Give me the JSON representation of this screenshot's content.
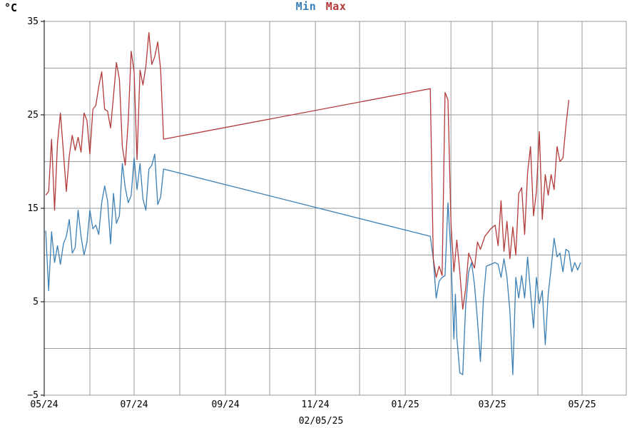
{
  "unit_label": "°C",
  "footer_date": "02/05/25",
  "legend": {
    "min_label": "Min",
    "max_label": "Max"
  },
  "colors": {
    "min": "#3b7fb4",
    "max": "#b33a3a",
    "grid": "#9a9a9a",
    "axis": "#000000"
  },
  "chart_data": {
    "type": "line",
    "title": "",
    "xlabel": "",
    "ylabel": "°C",
    "xlim": [
      "2024-05-01",
      "2025-05-31"
    ],
    "ylim": [
      -5,
      35
    ],
    "y_ticks": [
      35,
      25,
      15,
      5,
      -5
    ],
    "x_ticks": [
      {
        "date": "2024-05-01",
        "label": "05/24"
      },
      {
        "date": "2024-07-01",
        "label": "07/24"
      },
      {
        "date": "2024-09-01",
        "label": "09/24"
      },
      {
        "date": "2024-11-01",
        "label": "11/24"
      },
      {
        "date": "2025-01-01",
        "label": "01/25"
      },
      {
        "date": "2025-03-01",
        "label": "03/25"
      },
      {
        "date": "2025-05-01",
        "label": "05/25"
      }
    ],
    "grid": true,
    "legend_position": "top-center",
    "series": [
      {
        "name": "Min",
        "points": [
          [
            "2024-05-02",
            12.6
          ],
          [
            "2024-05-04",
            6.2
          ],
          [
            "2024-05-06",
            12.5
          ],
          [
            "2024-05-08",
            9.2
          ],
          [
            "2024-05-10",
            11.0
          ],
          [
            "2024-05-12",
            9.0
          ],
          [
            "2024-05-14",
            11.2
          ],
          [
            "2024-05-16",
            12.0
          ],
          [
            "2024-05-18",
            13.8
          ],
          [
            "2024-05-20",
            10.2
          ],
          [
            "2024-05-22",
            10.8
          ],
          [
            "2024-05-24",
            14.8
          ],
          [
            "2024-05-26",
            12.0
          ],
          [
            "2024-05-28",
            10.0
          ],
          [
            "2024-05-30",
            11.4
          ],
          [
            "2024-06-01",
            14.8
          ],
          [
            "2024-06-03",
            12.8
          ],
          [
            "2024-06-05",
            13.2
          ],
          [
            "2024-06-07",
            12.2
          ],
          [
            "2024-06-09",
            15.6
          ],
          [
            "2024-06-11",
            17.4
          ],
          [
            "2024-06-13",
            15.8
          ],
          [
            "2024-06-15",
            11.2
          ],
          [
            "2024-06-17",
            16.6
          ],
          [
            "2024-06-19",
            13.4
          ],
          [
            "2024-06-21",
            14.2
          ],
          [
            "2024-06-23",
            19.8
          ],
          [
            "2024-06-25",
            17.2
          ],
          [
            "2024-06-27",
            15.6
          ],
          [
            "2024-06-29",
            16.4
          ],
          [
            "2024-07-01",
            20.4
          ],
          [
            "2024-07-03",
            17.0
          ],
          [
            "2024-07-05",
            19.8
          ],
          [
            "2024-07-07",
            16.0
          ],
          [
            "2024-07-09",
            14.8
          ],
          [
            "2024-07-11",
            19.2
          ],
          [
            "2024-07-13",
            19.6
          ],
          [
            "2024-07-15",
            20.8
          ],
          [
            "2024-07-17",
            15.4
          ],
          [
            "2024-07-19",
            16.2
          ],
          [
            "2024-07-21",
            19.2
          ],
          [
            "2025-01-18",
            12.0
          ],
          [
            "2025-01-20",
            9.6
          ],
          [
            "2025-01-22",
            5.4
          ],
          [
            "2025-01-24",
            7.2
          ],
          [
            "2025-01-26",
            7.6
          ],
          [
            "2025-01-28",
            7.8
          ],
          [
            "2025-01-30",
            15.6
          ],
          [
            "2025-02-01",
            10.0
          ],
          [
            "2025-02-03",
            1.0
          ],
          [
            "2025-02-04",
            5.8
          ],
          [
            "2025-02-05",
            1.2
          ],
          [
            "2025-02-07",
            -2.6
          ],
          [
            "2025-02-09",
            -2.8
          ],
          [
            "2025-02-11",
            4.6
          ],
          [
            "2025-02-13",
            8.2
          ],
          [
            "2025-02-15",
            9.2
          ],
          [
            "2025-02-17",
            6.8
          ],
          [
            "2025-02-19",
            3.0
          ],
          [
            "2025-02-21",
            -1.4
          ],
          [
            "2025-02-23",
            5.2
          ],
          [
            "2025-02-25",
            8.8
          ],
          [
            "2025-02-28",
            9.0
          ],
          [
            "2025-03-03",
            9.2
          ],
          [
            "2025-03-05",
            9.0
          ],
          [
            "2025-03-07",
            7.6
          ],
          [
            "2025-03-09",
            9.6
          ],
          [
            "2025-03-11",
            7.6
          ],
          [
            "2025-03-13",
            4.0
          ],
          [
            "2025-03-15",
            -2.8
          ],
          [
            "2025-03-17",
            7.6
          ],
          [
            "2025-03-19",
            5.4
          ],
          [
            "2025-03-21",
            7.8
          ],
          [
            "2025-03-23",
            5.4
          ],
          [
            "2025-03-25",
            9.8
          ],
          [
            "2025-03-27",
            6.0
          ],
          [
            "2025-03-29",
            2.2
          ],
          [
            "2025-03-31",
            7.6
          ],
          [
            "2025-04-02",
            4.8
          ],
          [
            "2025-04-04",
            6.2
          ],
          [
            "2025-04-06",
            0.4
          ],
          [
            "2025-04-08",
            5.8
          ],
          [
            "2025-04-10",
            8.6
          ],
          [
            "2025-04-12",
            11.8
          ],
          [
            "2025-04-14",
            9.8
          ],
          [
            "2025-04-16",
            10.2
          ],
          [
            "2025-04-18",
            8.2
          ],
          [
            "2025-04-20",
            10.6
          ],
          [
            "2025-04-22",
            10.4
          ],
          [
            "2025-04-24",
            8.2
          ],
          [
            "2025-04-26",
            9.2
          ],
          [
            "2025-04-28",
            8.4
          ],
          [
            "2025-04-30",
            9.2
          ]
        ]
      },
      {
        "name": "Max",
        "points": [
          [
            "2024-05-02",
            16.4
          ],
          [
            "2024-05-04",
            16.8
          ],
          [
            "2024-05-06",
            22.4
          ],
          [
            "2024-05-08",
            14.8
          ],
          [
            "2024-05-10",
            22.0
          ],
          [
            "2024-05-12",
            25.2
          ],
          [
            "2024-05-14",
            21.0
          ],
          [
            "2024-05-16",
            16.8
          ],
          [
            "2024-05-18",
            20.6
          ],
          [
            "2024-05-20",
            22.8
          ],
          [
            "2024-05-22",
            21.2
          ],
          [
            "2024-05-24",
            22.6
          ],
          [
            "2024-05-26",
            21.0
          ],
          [
            "2024-05-28",
            25.2
          ],
          [
            "2024-05-30",
            24.4
          ],
          [
            "2024-06-01",
            20.8
          ],
          [
            "2024-06-03",
            25.6
          ],
          [
            "2024-06-05",
            26.0
          ],
          [
            "2024-06-07",
            28.0
          ],
          [
            "2024-06-09",
            29.6
          ],
          [
            "2024-06-11",
            25.6
          ],
          [
            "2024-06-13",
            25.4
          ],
          [
            "2024-06-15",
            23.6
          ],
          [
            "2024-06-17",
            27.0
          ],
          [
            "2024-06-19",
            30.6
          ],
          [
            "2024-06-21",
            28.8
          ],
          [
            "2024-06-23",
            21.6
          ],
          [
            "2024-06-25",
            19.6
          ],
          [
            "2024-06-27",
            24.4
          ],
          [
            "2024-06-29",
            31.8
          ],
          [
            "2024-07-01",
            29.6
          ],
          [
            "2024-07-03",
            20.2
          ],
          [
            "2024-07-05",
            29.8
          ],
          [
            "2024-07-07",
            28.2
          ],
          [
            "2024-07-09",
            30.2
          ],
          [
            "2024-07-11",
            33.8
          ],
          [
            "2024-07-13",
            30.4
          ],
          [
            "2024-07-15",
            31.2
          ],
          [
            "2024-07-17",
            32.8
          ],
          [
            "2024-07-19",
            29.8
          ],
          [
            "2024-07-21",
            22.4
          ],
          [
            "2025-01-18",
            27.8
          ],
          [
            "2025-01-20",
            9.6
          ],
          [
            "2025-01-22",
            7.6
          ],
          [
            "2025-01-24",
            8.8
          ],
          [
            "2025-01-26",
            7.8
          ],
          [
            "2025-01-28",
            27.4
          ],
          [
            "2025-01-30",
            26.6
          ],
          [
            "2025-02-01",
            13.4
          ],
          [
            "2025-02-03",
            8.2
          ],
          [
            "2025-02-05",
            11.6
          ],
          [
            "2025-02-07",
            8.2
          ],
          [
            "2025-02-09",
            4.2
          ],
          [
            "2025-02-11",
            6.4
          ],
          [
            "2025-02-13",
            10.2
          ],
          [
            "2025-02-15",
            9.4
          ],
          [
            "2025-02-17",
            8.6
          ],
          [
            "2025-02-19",
            11.4
          ],
          [
            "2025-02-21",
            10.6
          ],
          [
            "2025-02-24",
            12.0
          ],
          [
            "2025-02-28",
            12.8
          ],
          [
            "2025-03-03",
            13.2
          ],
          [
            "2025-03-05",
            11.0
          ],
          [
            "2025-03-07",
            15.8
          ],
          [
            "2025-03-09",
            10.4
          ],
          [
            "2025-03-11",
            13.6
          ],
          [
            "2025-03-13",
            9.6
          ],
          [
            "2025-03-15",
            13.0
          ],
          [
            "2025-03-17",
            10.0
          ],
          [
            "2025-03-19",
            16.6
          ],
          [
            "2025-03-21",
            17.2
          ],
          [
            "2025-03-23",
            12.2
          ],
          [
            "2025-03-25",
            18.8
          ],
          [
            "2025-03-27",
            21.6
          ],
          [
            "2025-03-29",
            14.2
          ],
          [
            "2025-03-31",
            16.8
          ],
          [
            "2025-04-02",
            23.2
          ],
          [
            "2025-04-04",
            13.8
          ],
          [
            "2025-04-06",
            18.6
          ],
          [
            "2025-04-08",
            16.4
          ],
          [
            "2025-04-10",
            18.6
          ],
          [
            "2025-04-12",
            17.0
          ],
          [
            "2025-04-14",
            21.6
          ],
          [
            "2025-04-16",
            20.0
          ],
          [
            "2025-04-18",
            20.4
          ],
          [
            "2025-04-20",
            23.8
          ],
          [
            "2025-04-22",
            26.6
          ]
        ]
      }
    ]
  }
}
